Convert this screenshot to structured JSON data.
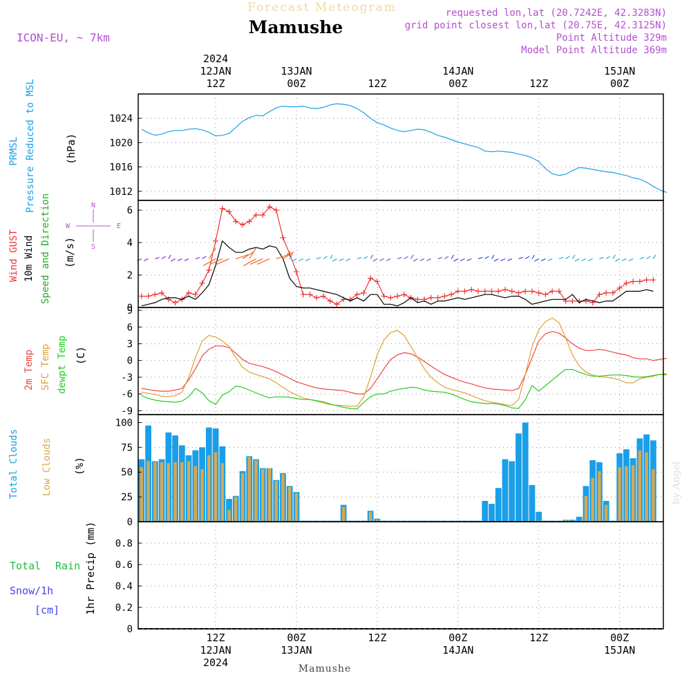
{
  "header": {
    "banner": "Forecast Meteogram",
    "location": "Mamushe",
    "model": "ICON-EU, ~ 7km",
    "requested": "requested lon,lat (20.7242E, 42.3283N)",
    "grid_point": "grid point closest lon,lat (20.75E, 42.3125N)",
    "point_altitude": "Point Altitude 329m",
    "model_altitude": "Model Point Altitude 369m",
    "footer": "Mamushe",
    "credit": "by Angel"
  },
  "colors": {
    "pressure": "#1aa0e6",
    "gust": "#ee3333",
    "wind": "#000000",
    "direction_label": "#22aa22",
    "compass": "#b44fd1",
    "temp2m": "#ee4444",
    "sfc": "#e0a030",
    "dewpt": "#22cc22",
    "total_clouds": "#1a9ee8",
    "low_clouds": "#d8a850",
    "rain": "#22bb44",
    "snow": "#4444ee",
    "header_purple": "#b44fd1"
  },
  "time_axis": {
    "top": [
      {
        "h": 0,
        "lines": [
          "2024",
          "12JAN",
          "12Z"
        ]
      },
      {
        "h": 12,
        "lines": [
          "13JAN",
          "00Z"
        ]
      },
      {
        "h": 24,
        "lines": [
          "12Z"
        ]
      },
      {
        "h": 36,
        "lines": [
          "14JAN",
          "00Z"
        ]
      },
      {
        "h": 48,
        "lines": [
          "12Z"
        ]
      },
      {
        "h": 60,
        "lines": [
          "15JAN",
          "00Z"
        ]
      }
    ],
    "bottom": [
      {
        "h": 0,
        "lines": [
          "12Z",
          "12JAN",
          "2024"
        ]
      },
      {
        "h": 12,
        "lines": [
          "00Z",
          "13JAN"
        ]
      },
      {
        "h": 24,
        "lines": [
          "12Z"
        ]
      },
      {
        "h": 36,
        "lines": [
          "00Z",
          "14JAN"
        ]
      },
      {
        "h": 48,
        "lines": [
          "12Z"
        ]
      },
      {
        "h": 60,
        "lines": [
          "00Z",
          "15JAN"
        ]
      }
    ]
  },
  "panels": {
    "pressure": {
      "labels": [
        "PRMSL",
        "Pressure Reduced to MSL"
      ],
      "unit": "(hPa)",
      "ticks": [
        "1012",
        "1016",
        "1020",
        "1024"
      ]
    },
    "wind": {
      "labels": [
        "Wind GUST",
        "10m Wind",
        "Speed and Direction"
      ],
      "unit": "(m/s)",
      "ticks": [
        "0",
        "2",
        "4",
        "6"
      ],
      "compass": {
        "n": "N",
        "s": "S",
        "w": "W",
        "e": "E"
      }
    },
    "temp": {
      "labels": [
        "2m Temp",
        "SFC Temp",
        "dewpt Temp"
      ],
      "unit": "(C)",
      "ticks": [
        "-9",
        "-6",
        "-3",
        "0",
        "3",
        "6",
        "9"
      ]
    },
    "clouds": {
      "labels": [
        "Total Clouds",
        "Low Clouds"
      ],
      "unit": "(%)",
      "ticks": [
        "0",
        "25",
        "50",
        "75",
        "100"
      ]
    },
    "precip": {
      "labels": [
        "Total",
        "Rain",
        "Snow/1h",
        "[cm]"
      ],
      "unit": "1hr Precip (mm)",
      "ticks": [
        "0",
        "0.2",
        "0.4",
        "0.6",
        "0.8"
      ]
    }
  },
  "chart_data": [
    {
      "type": "line",
      "name": "PRMSL",
      "ylabel": "(hPa)",
      "ylim": [
        1010.5,
        1028
      ],
      "x_start_hours": -11,
      "x_step_hours": 1,
      "series": [
        {
          "name": "PRMSL",
          "values": [
            1022.2,
            1021.6,
            1021.2,
            1021.4,
            1021.8,
            1022.0,
            1022.0,
            1022.2,
            1022.3,
            1022.1,
            1021.7,
            1021.1,
            1021.2,
            1021.5,
            1022.5,
            1023.5,
            1024.1,
            1024.5,
            1024.4,
            1025.1,
            1025.7,
            1026.0,
            1025.9,
            1025.9,
            1026.0,
            1025.7,
            1025.6,
            1025.8,
            1026.2,
            1026.4,
            1026.3,
            1026.1,
            1025.6,
            1024.9,
            1024.0,
            1023.3,
            1022.9,
            1022.4,
            1022.0,
            1021.8,
            1022.0,
            1022.2,
            1022.1,
            1021.7,
            1021.2,
            1020.9,
            1020.5,
            1020.1,
            1019.8,
            1019.5,
            1019.2,
            1018.6,
            1018.5,
            1018.6,
            1018.5,
            1018.4,
            1018.1,
            1017.9,
            1017.5,
            1016.9,
            1015.7,
            1014.9,
            1014.6,
            1014.8,
            1015.4,
            1015.9,
            1015.8,
            1015.6,
            1015.4,
            1015.2,
            1015.1,
            1014.8,
            1014.6,
            1014.2,
            1014.0,
            1013.5,
            1012.8,
            1012.2,
            1011.8
          ]
        }
      ]
    },
    {
      "type": "line",
      "name": "Wind",
      "ylabel": "(m/s)",
      "ylim": [
        0,
        6.6
      ],
      "x_start_hours": -11,
      "x_step_hours": 1,
      "series": [
        {
          "name": "Wind GUST",
          "values": [
            0.7,
            0.7,
            0.8,
            0.9,
            0.5,
            0.3,
            0.5,
            0.9,
            0.8,
            1.5,
            2.3,
            4.1,
            6.1,
            5.9,
            5.3,
            5.1,
            5.3,
            5.7,
            5.7,
            6.2,
            6.0,
            4.3,
            3.3,
            2.2,
            0.8,
            0.8,
            0.6,
            0.7,
            0.4,
            0.2,
            0.5,
            0.5,
            0.8,
            0.9,
            1.8,
            1.6,
            0.7,
            0.6,
            0.7,
            0.8,
            0.6,
            0.5,
            0.5,
            0.6,
            0.6,
            0.7,
            0.8,
            1.0,
            1.0,
            1.1,
            1.0,
            1.0,
            1.0,
            1.0,
            1.1,
            1.0,
            0.9,
            1.0,
            1.0,
            0.9,
            0.8,
            1.0,
            1.0,
            0.4,
            0.4,
            0.4,
            0.4,
            0.3,
            0.8,
            0.9,
            0.9,
            1.2,
            1.5,
            1.6,
            1.6,
            1.7,
            1.7
          ]
        },
        {
          "name": "10m Wind",
          "values": [
            0.1,
            0.2,
            0.3,
            0.5,
            0.6,
            0.6,
            0.5,
            0.7,
            0.5,
            0.9,
            1.4,
            2.6,
            4.1,
            3.7,
            3.4,
            3.4,
            3.6,
            3.7,
            3.6,
            3.8,
            3.7,
            3.0,
            1.8,
            1.3,
            1.2,
            1.2,
            1.1,
            1.0,
            0.9,
            0.8,
            0.6,
            0.4,
            0.6,
            0.4,
            0.8,
            0.8,
            0.2,
            0.2,
            0.1,
            0.3,
            0.6,
            0.3,
            0.4,
            0.2,
            0.4,
            0.4,
            0.5,
            0.6,
            0.5,
            0.6,
            0.7,
            0.8,
            0.8,
            0.7,
            0.6,
            0.7,
            0.7,
            0.5,
            0.2,
            0.3,
            0.4,
            0.5,
            0.5,
            0.5,
            0.8,
            0.3,
            0.5,
            0.4,
            0.3,
            0.4,
            0.4,
            0.7,
            1.0,
            1.0,
            1.0,
            1.1,
            1.0
          ]
        }
      ]
    },
    {
      "type": "line",
      "name": "Temperature",
      "ylabel": "(C)",
      "ylim": [
        -9.7,
        9.5
      ],
      "x_start_hours": -11,
      "x_step_hours": 1,
      "series": [
        {
          "name": "2m Temp",
          "values": [
            -5.0,
            -5.2,
            -5.4,
            -5.5,
            -5.5,
            -5.3,
            -5.0,
            -3.5,
            -1.5,
            0.8,
            2.0,
            2.6,
            2.6,
            2.3,
            1.3,
            0.2,
            -0.5,
            -0.8,
            -1.1,
            -1.5,
            -2.0,
            -2.6,
            -3.2,
            -3.8,
            -4.2,
            -4.6,
            -4.9,
            -5.1,
            -5.2,
            -5.3,
            -5.4,
            -5.7,
            -6.0,
            -6.0,
            -5.0,
            -3.3,
            -1.5,
            0.2,
            1.0,
            1.4,
            1.2,
            0.6,
            -0.2,
            -1.0,
            -1.8,
            -2.5,
            -3.0,
            -3.5,
            -3.9,
            -4.2,
            -4.6,
            -4.9,
            -5.1,
            -5.2,
            -5.3,
            -5.4,
            -5.0,
            -2.5,
            0.5,
            3.5,
            4.8,
            5.2,
            4.9,
            4.0,
            3.0,
            2.2,
            1.8,
            1.8,
            2.0,
            1.8,
            1.5,
            1.2,
            1.0,
            0.5,
            0.3,
            0.3,
            0.0,
            0.2,
            0.4
          ]
        },
        {
          "name": "SFC Temp",
          "values": [
            -5.7,
            -5.9,
            -6.1,
            -6.4,
            -6.5,
            -6.3,
            -5.7,
            -3.0,
            0.5,
            3.5,
            4.5,
            4.2,
            3.5,
            2.5,
            0.5,
            -1.2,
            -2.1,
            -2.5,
            -2.9,
            -3.3,
            -4.0,
            -4.8,
            -5.6,
            -6.2,
            -6.7,
            -7.0,
            -7.3,
            -7.6,
            -7.9,
            -8.0,
            -8.1,
            -8.2,
            -8.2,
            -6.5,
            -3.0,
            1.0,
            3.7,
            5.0,
            5.4,
            4.5,
            2.5,
            0.5,
            -1.5,
            -3.0,
            -4.0,
            -4.8,
            -5.2,
            -5.5,
            -5.8,
            -6.3,
            -6.8,
            -7.2,
            -7.5,
            -7.7,
            -7.9,
            -8.1,
            -7.0,
            -2.5,
            2.5,
            5.5,
            7.0,
            7.6,
            6.8,
            4.0,
            1.0,
            -1.0,
            -2.1,
            -2.6,
            -2.9,
            -3.0,
            -3.2,
            -3.5,
            -4.0,
            -4.0,
            -3.3,
            -3.0,
            -2.8,
            -2.5,
            -2.6
          ]
        },
        {
          "name": "dewpt Temp",
          "values": [
            -6.3,
            -6.8,
            -7.1,
            -7.3,
            -7.4,
            -7.5,
            -7.3,
            -6.5,
            -5.0,
            -5.8,
            -7.2,
            -7.9,
            -6.2,
            -5.6,
            -4.6,
            -4.8,
            -5.3,
            -5.8,
            -6.3,
            -6.7,
            -6.5,
            -6.5,
            -6.6,
            -6.8,
            -7.0,
            -7.0,
            -7.2,
            -7.4,
            -7.8,
            -8.1,
            -8.4,
            -8.6,
            -8.7,
            -7.5,
            -6.5,
            -6.0,
            -6.0,
            -5.5,
            -5.2,
            -5.0,
            -4.8,
            -4.9,
            -5.3,
            -5.5,
            -5.6,
            -5.7,
            -6.0,
            -6.5,
            -7.0,
            -7.4,
            -7.6,
            -7.7,
            -7.7,
            -7.8,
            -8.1,
            -8.5,
            -8.6,
            -7.0,
            -4.5,
            -5.5,
            -4.5,
            -3.5,
            -2.5,
            -1.6,
            -1.6,
            -2.1,
            -2.5,
            -2.8,
            -2.8,
            -2.7,
            -2.6,
            -2.6,
            -2.7,
            -2.9,
            -3.0,
            -2.9,
            -2.7,
            -2.5,
            -2.4
          ]
        }
      ]
    },
    {
      "type": "bar",
      "name": "Clouds",
      "ylabel": "(%)",
      "ylim": [
        0,
        108
      ],
      "x_start_hours": -11,
      "x_step_hours": 1,
      "series": [
        {
          "name": "Total Clouds",
          "values": [
            63,
            97,
            61,
            63,
            90,
            87,
            77,
            67,
            72,
            75,
            95,
            94,
            76,
            23,
            26,
            51,
            66,
            63,
            54,
            54,
            42,
            49,
            36,
            30,
            1,
            1,
            1,
            1,
            1,
            1,
            17,
            1,
            1,
            1,
            11,
            3,
            1,
            1,
            1,
            1,
            1,
            1,
            1,
            1,
            1,
            1,
            1,
            1,
            1,
            1,
            1,
            21,
            18,
            34,
            63,
            61,
            89,
            100,
            37,
            10,
            1,
            1,
            1,
            2,
            2,
            5,
            36,
            62,
            60,
            21,
            1,
            69,
            73,
            64,
            84,
            88,
            82
          ]
        },
        {
          "name": "Low Clouds",
          "values": [
            55,
            61,
            60,
            60,
            59,
            60,
            60,
            61,
            56,
            53,
            67,
            70,
            59,
            12,
            25,
            49,
            65,
            62,
            53,
            54,
            41,
            48,
            35,
            29,
            0,
            0,
            0,
            0,
            0,
            0,
            15,
            0,
            0,
            0,
            10,
            2,
            0,
            0,
            0,
            0,
            0,
            0,
            0,
            0,
            0,
            0,
            0,
            0,
            0,
            0,
            0,
            0,
            0,
            0,
            0,
            0,
            0,
            0,
            0,
            1,
            0,
            0,
            0,
            2,
            1,
            0,
            26,
            44,
            51,
            17,
            0,
            55,
            56,
            57,
            72,
            70,
            53
          ]
        }
      ]
    },
    {
      "type": "bar",
      "name": "Precipitation",
      "ylabel": "1hr Precip (mm)",
      "ylim": [
        0,
        1.0
      ],
      "x_start_hours": -11,
      "x_step_hours": 1,
      "series": [
        {
          "name": "Total",
          "values": [
            0,
            0,
            0,
            0,
            0,
            0,
            0,
            0,
            0,
            0,
            0,
            0,
            0,
            0,
            0,
            0,
            0,
            0,
            0,
            0,
            0,
            0,
            0,
            0,
            0,
            0,
            0,
            0,
            0,
            0,
            0,
            0,
            0,
            0,
            0,
            0,
            0,
            0,
            0,
            0,
            0,
            0,
            0,
            0,
            0,
            0,
            0,
            0,
            0,
            0,
            0,
            0,
            0,
            0,
            0,
            0,
            0,
            0,
            0,
            0,
            0,
            0,
            0,
            0,
            0,
            0,
            0,
            0,
            0,
            0,
            0,
            0,
            0,
            0,
            0,
            0,
            0
          ]
        }
      ]
    }
  ]
}
